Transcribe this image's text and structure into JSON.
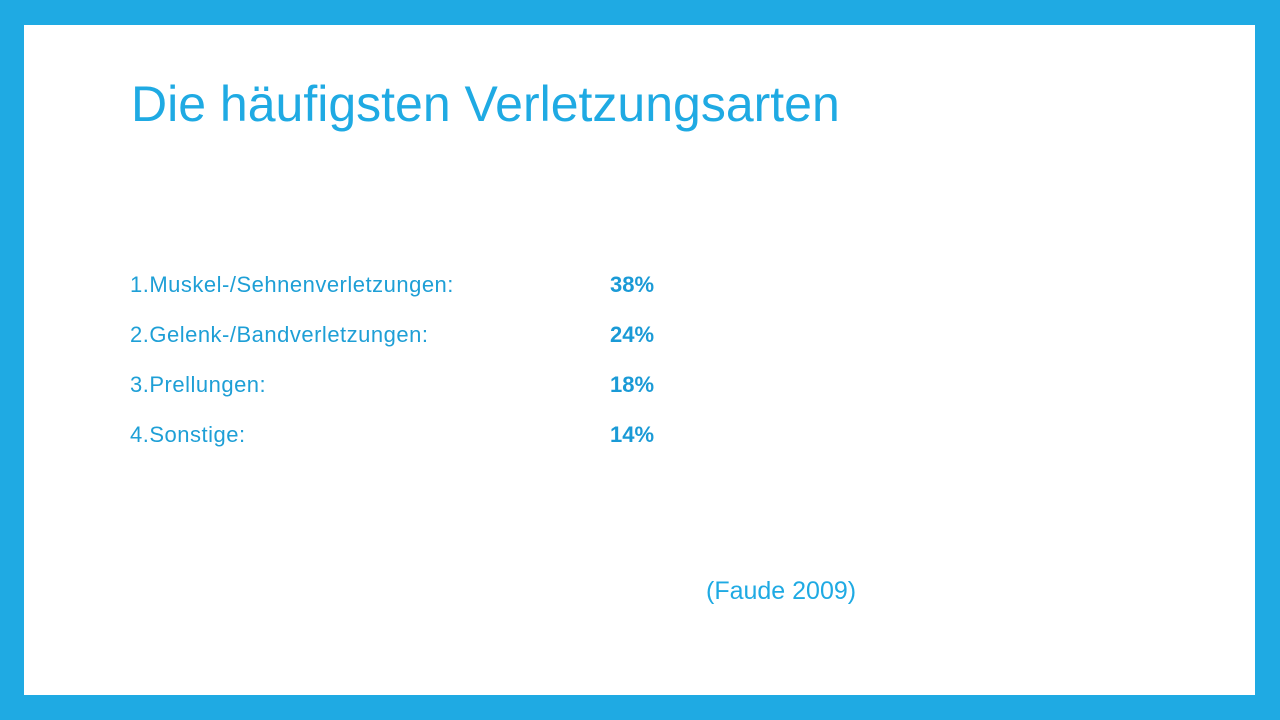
{
  "slide": {
    "title": "Die häufigsten Verletzungsarten",
    "items": [
      {
        "label": "1.Muskel-/Sehnenverletzungen:",
        "value": "38%"
      },
      {
        "label": "2.Gelenk-/Bandverletzungen:",
        "value": "24%"
      },
      {
        "label": "3.Prellungen:",
        "value": "18%"
      },
      {
        "label": "4.Sonstige:",
        "value": "14%"
      }
    ],
    "citation": "(Faude 2009)"
  },
  "colors": {
    "frame": "#1faae3",
    "background": "#ffffff",
    "text": "#1faae3"
  }
}
